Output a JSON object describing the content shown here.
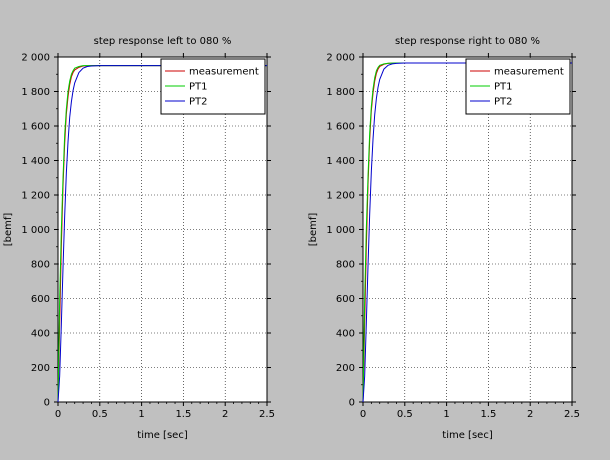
{
  "chart_data": [
    {
      "type": "line",
      "title": "step response left to 080 %",
      "xlabel": "time [sec]",
      "ylabel": "[bemf]",
      "xlim": [
        0,
        2.5
      ],
      "ylim": [
        0,
        2000
      ],
      "xticks": [
        0,
        0.5,
        1,
        1.5,
        2,
        2.5
      ],
      "xtick_labels": [
        "0",
        "0.5",
        "1",
        "1.5",
        "2",
        "2.5"
      ],
      "yticks": [
        0,
        200,
        400,
        600,
        800,
        1000,
        1200,
        1400,
        1600,
        1800,
        2000
      ],
      "ytick_labels": [
        "0",
        "200",
        "400",
        "600",
        "800",
        "1 000",
        "1 200",
        "1 400",
        "1 600",
        "1 800",
        "2 000"
      ],
      "grid": true,
      "legend": "top-right",
      "series": [
        {
          "name": "measurement",
          "color": "#cc0000",
          "x": [
            0,
            0.02,
            0.04,
            0.06,
            0.08,
            0.1,
            0.12,
            0.14,
            0.16,
            0.18,
            0.2,
            0.25,
            0.3,
            0.4,
            0.5,
            1.0,
            1.5,
            2.5
          ],
          "y": [
            0,
            450,
            900,
            1250,
            1500,
            1670,
            1770,
            1840,
            1885,
            1910,
            1925,
            1940,
            1948,
            1950,
            1950,
            1950,
            1950,
            1950
          ]
        },
        {
          "name": "PT1",
          "color": "#00cc00",
          "x": [
            0,
            0.02,
            0.04,
            0.06,
            0.08,
            0.1,
            0.12,
            0.14,
            0.16,
            0.18,
            0.2,
            0.25,
            0.3,
            0.4,
            0.5,
            1.0,
            1.5,
            2.5
          ],
          "y": [
            0,
            600,
            1000,
            1300,
            1550,
            1700,
            1800,
            1860,
            1900,
            1920,
            1935,
            1945,
            1950,
            1950,
            1950,
            1950,
            1950,
            1950
          ]
        },
        {
          "name": "PT2",
          "color": "#0000cc",
          "x": [
            0,
            0.02,
            0.04,
            0.06,
            0.08,
            0.1,
            0.12,
            0.14,
            0.16,
            0.18,
            0.2,
            0.25,
            0.3,
            0.35,
            0.4,
            0.5,
            1.0,
            1.5,
            2.5
          ],
          "y": [
            0,
            150,
            450,
            780,
            1080,
            1330,
            1510,
            1650,
            1740,
            1805,
            1850,
            1910,
            1935,
            1945,
            1948,
            1950,
            1950,
            1950,
            1950
          ]
        }
      ]
    },
    {
      "type": "line",
      "title": "step response right to 080 %",
      "xlabel": "time [sec]",
      "ylabel": "[bemf]",
      "xlim": [
        0,
        2.5
      ],
      "ylim": [
        0,
        2000
      ],
      "xticks": [
        0,
        0.5,
        1,
        1.5,
        2,
        2.5
      ],
      "xtick_labels": [
        "0",
        "0.5",
        "1",
        "1.5",
        "2",
        "2.5"
      ],
      "yticks": [
        0,
        200,
        400,
        600,
        800,
        1000,
        1200,
        1400,
        1600,
        1800,
        2000
      ],
      "ytick_labels": [
        "0",
        "200",
        "400",
        "600",
        "800",
        "1 000",
        "1 200",
        "1 400",
        "1 600",
        "1 800",
        "2 000"
      ],
      "grid": true,
      "legend": "top-right",
      "series": [
        {
          "name": "measurement",
          "color": "#cc0000",
          "x": [
            0,
            0.02,
            0.04,
            0.06,
            0.08,
            0.1,
            0.12,
            0.14,
            0.16,
            0.18,
            0.2,
            0.25,
            0.3,
            0.4,
            0.5,
            1.0,
            1.5,
            2.5
          ],
          "y": [
            0,
            450,
            900,
            1260,
            1520,
            1690,
            1790,
            1860,
            1905,
            1930,
            1945,
            1958,
            1963,
            1965,
            1965,
            1965,
            1965,
            1965
          ]
        },
        {
          "name": "PT1",
          "color": "#00cc00",
          "x": [
            0,
            0.02,
            0.04,
            0.06,
            0.08,
            0.1,
            0.12,
            0.14,
            0.16,
            0.18,
            0.2,
            0.25,
            0.3,
            0.4,
            0.5,
            1.0,
            1.5,
            2.5
          ],
          "y": [
            0,
            600,
            1010,
            1310,
            1560,
            1715,
            1815,
            1880,
            1920,
            1940,
            1952,
            1960,
            1964,
            1965,
            1965,
            1965,
            1965,
            1965
          ]
        },
        {
          "name": "PT2",
          "color": "#0000cc",
          "x": [
            0,
            0.02,
            0.04,
            0.06,
            0.08,
            0.1,
            0.12,
            0.14,
            0.16,
            0.18,
            0.2,
            0.25,
            0.3,
            0.35,
            0.4,
            0.5,
            1.0,
            1.5,
            2.5
          ],
          "y": [
            0,
            150,
            460,
            790,
            1090,
            1340,
            1525,
            1665,
            1760,
            1825,
            1870,
            1930,
            1952,
            1960,
            1963,
            1965,
            1965,
            1965,
            1965
          ]
        }
      ]
    }
  ]
}
